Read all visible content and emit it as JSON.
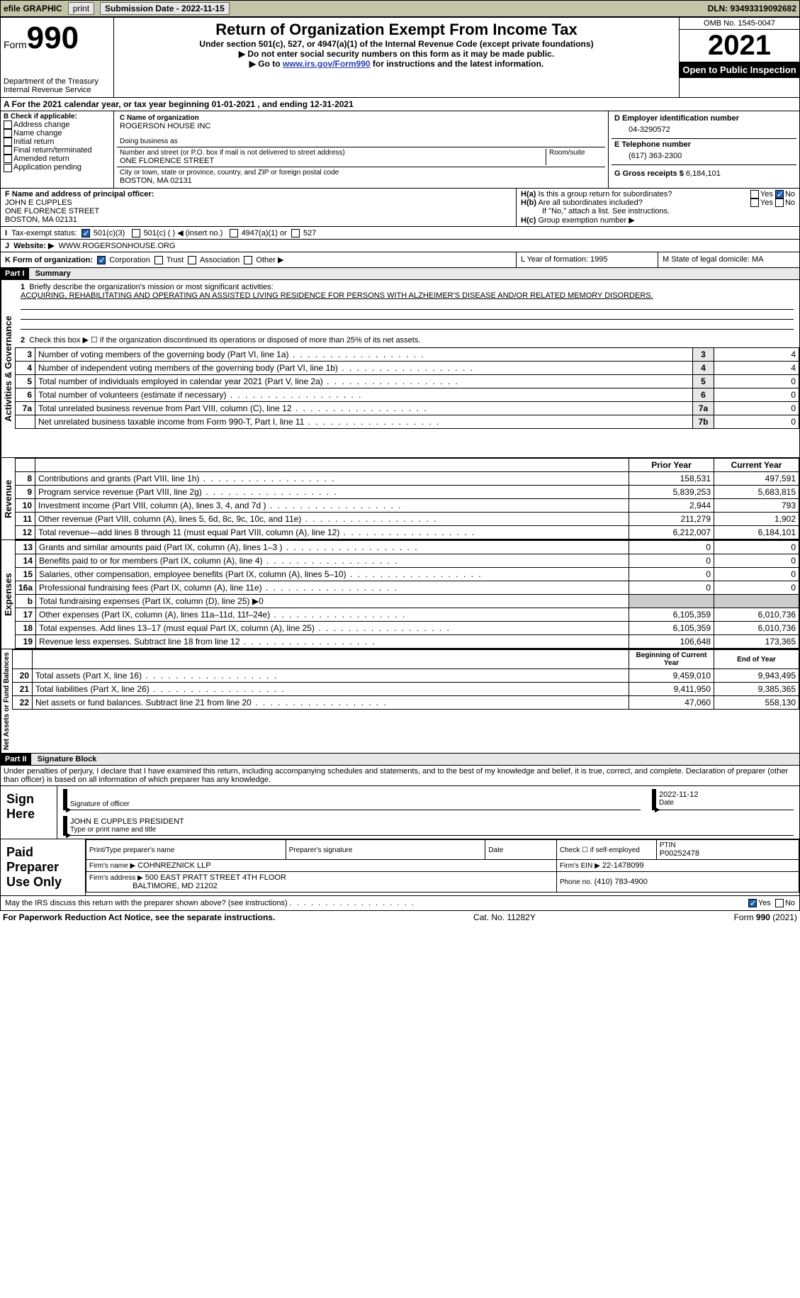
{
  "topbar": {
    "efile": "efile GRAPHIC",
    "print": "print",
    "subdate_lbl": "Submission Date - 2022-11-15",
    "dln_lbl": "DLN: 93493319092682"
  },
  "header": {
    "form_word": "Form",
    "form_num": "990",
    "dept": "Department of the Treasury\nInternal Revenue Service",
    "title": "Return of Organization Exempt From Income Tax",
    "sub1": "Under section 501(c), 527, or 4947(a)(1) of the Internal Revenue Code (except private foundations)",
    "sub2": "▶ Do not enter social security numbers on this form as it may be made public.",
    "sub3_a": "▶ Go to ",
    "sub3_link": "www.irs.gov/Form990",
    "sub3_b": " for instructions and the latest information.",
    "omb": "OMB No. 1545-0047",
    "year": "2021",
    "openpub": "Open to Public Inspection"
  },
  "period": "A For the 2021 calendar year, or tax year beginning 01-01-2021    , and ending 12-31-2021",
  "blockB": {
    "hdr": "B Check if applicable:",
    "items": [
      "Address change",
      "Name change",
      "Initial return",
      "Final return/terminated",
      "Amended return",
      "Application pending"
    ]
  },
  "blockC": {
    "name_lbl": "C Name of organization",
    "name": "ROGERSON HOUSE INC",
    "dba_lbl": "Doing business as",
    "addr_lbl": "Number and street (or P.O. box if mail is not delivered to street address)",
    "room_lbl": "Room/suite",
    "addr": "ONE FLORENCE STREET",
    "city_lbl": "City or town, state or province, country, and ZIP or foreign postal code",
    "city": "BOSTON, MA  02131"
  },
  "blockD": {
    "ein_lbl": "D Employer identification number",
    "ein": "04-3290572",
    "tel_lbl": "E Telephone number",
    "tel": "(617) 363-2300",
    "gross_lbl": "G Gross receipts $ ",
    "gross": "6,184,101"
  },
  "blockF": {
    "lbl": "F Name and address of principal officer:",
    "name": "JOHN E CUPPLES",
    "addr1": "ONE FLORENCE STREET",
    "addr2": "BOSTON, MA  02131"
  },
  "blockH": {
    "a": "Is this a group return for subordinates?",
    "b": "Are all subordinates included?",
    "note": "If \"No,\" attach a list. See instructions.",
    "c": "Group exemption number ▶"
  },
  "taxexempt": {
    "lbl": "Tax-exempt status:",
    "opt1": "501(c)(3)",
    "opt2": "501(c) (  ) ◀ (insert no.)",
    "opt3": "4947(a)(1) or",
    "opt4": "527"
  },
  "website": {
    "lbl": "Website: ▶",
    "val": "WWW.ROGERSONHOUSE.ORG"
  },
  "formorg": {
    "lbl": "K Form of organization:",
    "opts": [
      "Corporation",
      "Trust",
      "Association",
      "Other ▶"
    ],
    "L": "L Year of formation: 1995",
    "M": "M State of legal domicile: MA"
  },
  "part1": {
    "hdr": "Part I",
    "title": "Summary",
    "q1a": "Briefly describe the organization's mission or most significant activities:",
    "q1b": "ACQUIRING, REHABILITATING AND OPERATING AN ASSISTED LIVING RESIDENCE FOR PERSONS WITH ALZHEIMER'S DISEASE AND/OR RELATED MEMORY DISORDERS.",
    "q2": "Check this box ▶ ☐ if the organization discontinued its operations or disposed of more than 25% of its net assets.",
    "sidelabels": {
      "a": "Activities & Governance",
      "b": "Revenue",
      "c": "Expenses",
      "d": "Net Assets or Fund Balances"
    }
  },
  "gov_rows": [
    {
      "n": "3",
      "desc": "Number of voting members of the governing body (Part VI, line 1a)",
      "box": "3",
      "val": "4"
    },
    {
      "n": "4",
      "desc": "Number of independent voting members of the governing body (Part VI, line 1b)",
      "box": "4",
      "val": "4"
    },
    {
      "n": "5",
      "desc": "Total number of individuals employed in calendar year 2021 (Part V, line 2a)",
      "box": "5",
      "val": "0"
    },
    {
      "n": "6",
      "desc": "Total number of volunteers (estimate if necessary)",
      "box": "6",
      "val": "0"
    },
    {
      "n": "7a",
      "desc": "Total unrelated business revenue from Part VIII, column (C), line 12",
      "box": "7a",
      "val": "0"
    },
    {
      "n": "",
      "desc": "Net unrelated business taxable income from Form 990-T, Part I, line 11",
      "box": "7b",
      "val": "0"
    }
  ],
  "rev_hdr": {
    "prior": "Prior Year",
    "current": "Current Year"
  },
  "rev_rows": [
    {
      "n": "8",
      "desc": "Contributions and grants (Part VIII, line 1h)",
      "py": "158,531",
      "cy": "497,591"
    },
    {
      "n": "9",
      "desc": "Program service revenue (Part VIII, line 2g)",
      "py": "5,839,253",
      "cy": "5,683,815"
    },
    {
      "n": "10",
      "desc": "Investment income (Part VIII, column (A), lines 3, 4, and 7d )",
      "py": "2,944",
      "cy": "793"
    },
    {
      "n": "11",
      "desc": "Other revenue (Part VIII, column (A), lines 5, 6d, 8c, 9c, 10c, and 11e)",
      "py": "211,279",
      "cy": "1,902"
    },
    {
      "n": "12",
      "desc": "Total revenue—add lines 8 through 11 (must equal Part VIII, column (A), line 12)",
      "py": "6,212,007",
      "cy": "6,184,101"
    }
  ],
  "exp_rows": [
    {
      "n": "13",
      "desc": "Grants and similar amounts paid (Part IX, column (A), lines 1–3 )",
      "py": "0",
      "cy": "0"
    },
    {
      "n": "14",
      "desc": "Benefits paid to or for members (Part IX, column (A), line 4)",
      "py": "0",
      "cy": "0"
    },
    {
      "n": "15",
      "desc": "Salaries, other compensation, employee benefits (Part IX, column (A), lines 5–10)",
      "py": "0",
      "cy": "0"
    },
    {
      "n": "16a",
      "desc": "Professional fundraising fees (Part IX, column (A), line 11e)",
      "py": "0",
      "cy": "0"
    },
    {
      "n": "b",
      "desc": "Total fundraising expenses (Part IX, column (D), line 25) ▶0",
      "py": "",
      "cy": "",
      "shade": true
    },
    {
      "n": "17",
      "desc": "Other expenses (Part IX, column (A), lines 11a–11d, 11f–24e)",
      "py": "6,105,359",
      "cy": "6,010,736"
    },
    {
      "n": "18",
      "desc": "Total expenses. Add lines 13–17 (must equal Part IX, column (A), line 25)",
      "py": "6,105,359",
      "cy": "6,010,736"
    },
    {
      "n": "19",
      "desc": "Revenue less expenses. Subtract line 18 from line 12",
      "py": "106,648",
      "cy": "173,365"
    }
  ],
  "na_hdr": {
    "prior": "Beginning of Current Year",
    "current": "End of Year"
  },
  "na_rows": [
    {
      "n": "20",
      "desc": "Total assets (Part X, line 16)",
      "py": "9,459,010",
      "cy": "9,943,495"
    },
    {
      "n": "21",
      "desc": "Total liabilities (Part X, line 26)",
      "py": "9,411,950",
      "cy": "9,385,365"
    },
    {
      "n": "22",
      "desc": "Net assets or fund balances. Subtract line 21 from line 20",
      "py": "47,060",
      "cy": "558,130"
    }
  ],
  "part2": {
    "hdr": "Part II",
    "title": "Signature Block",
    "decl": "Under penalties of perjury, I declare that I have examined this return, including accompanying schedules and statements, and to the best of my knowledge and belief, it is true, correct, and complete. Declaration of preparer (other than officer) is based on all information of which preparer has any knowledge."
  },
  "sign": {
    "here": "Sign Here",
    "sig_lbl": "Signature of officer",
    "date_lbl": "Date",
    "date": "2022-11-12",
    "name": "JOHN E CUPPLES  PRESIDENT",
    "name_lbl": "Type or print name and title"
  },
  "prep": {
    "hdr": "Paid Preparer Use Only",
    "c1": "Print/Type preparer's name",
    "c2": "Preparer's signature",
    "c3": "Date",
    "c4a": "Check ☐ if self-employed",
    "c4b": "PTIN",
    "ptin": "P00252478",
    "firm_lbl": "Firm's name    ▶",
    "firm": "COHNREZNICK LLP",
    "ein_lbl": "Firm's EIN ▶",
    "ein": "22-1478099",
    "addr_lbl": "Firm's address ▶",
    "addr1": "500 EAST PRATT STREET 4TH FLOOR",
    "addr2": "BALTIMORE, MD  21202",
    "phone_lbl": "Phone no.",
    "phone": "(410) 783-4900"
  },
  "discuss": "May the IRS discuss this return with the preparer shown above? (see instructions)",
  "footer": {
    "a": "For Paperwork Reduction Act Notice, see the separate instructions.",
    "b": "Cat. No. 11282Y",
    "c": "Form 990 (2021)"
  }
}
